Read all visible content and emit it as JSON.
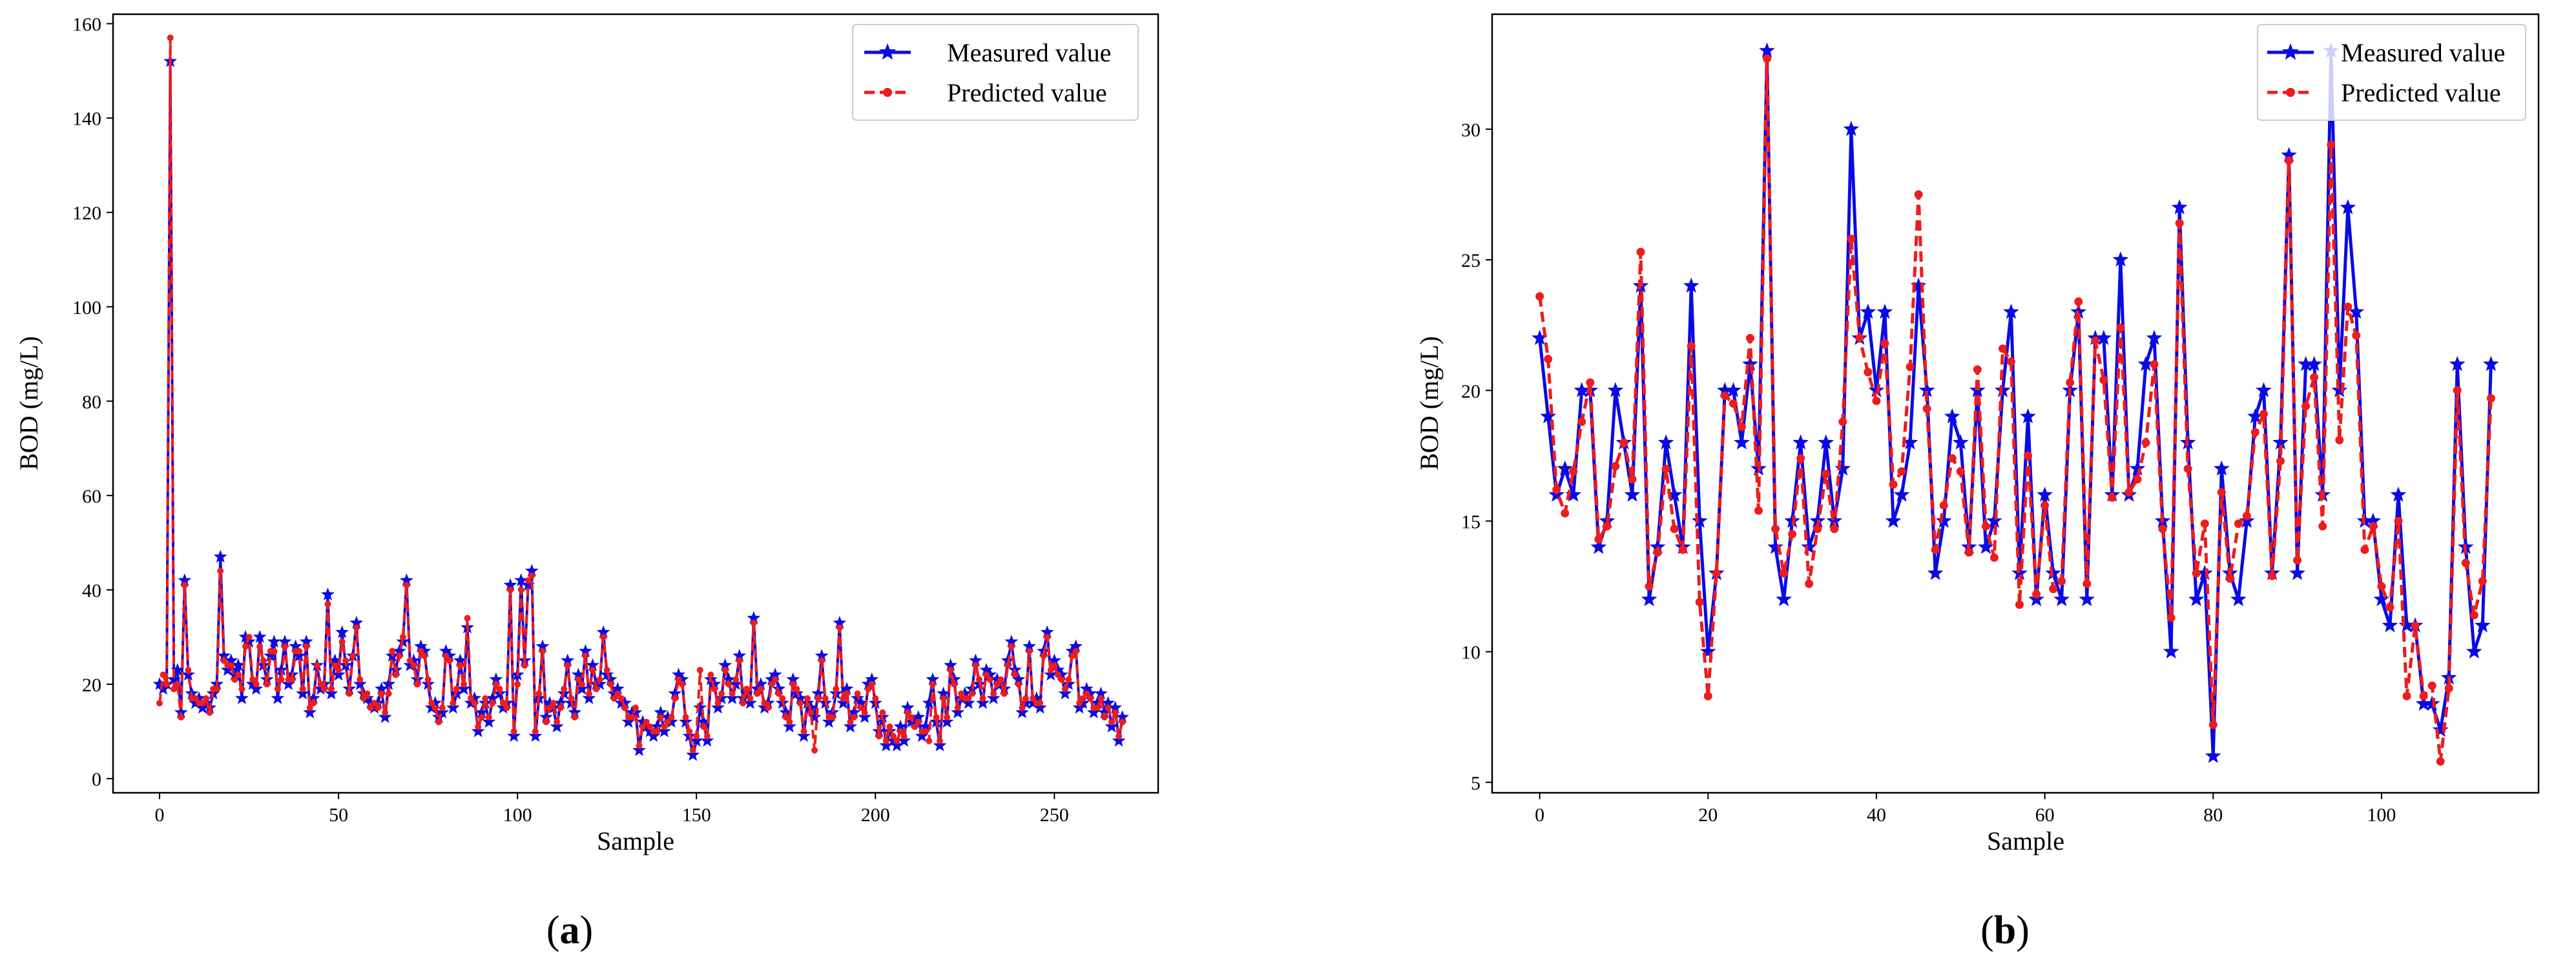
{
  "figure": {
    "panels": [
      {
        "id": "a",
        "label_open": "(",
        "label_letter": "a",
        "label_close": ")"
      },
      {
        "id": "b",
        "label_open": "(",
        "label_letter": "b",
        "label_close": ")"
      }
    ]
  },
  "chart_data": [
    {
      "type": "line",
      "panel": "a",
      "title": "",
      "xlabel": "Sample",
      "ylabel": "BOD (mg/L)",
      "xlim": [
        -13,
        279
      ],
      "ylim": [
        -3,
        162
      ],
      "xticks": [
        0,
        50,
        100,
        150,
        200,
        250
      ],
      "yticks": [
        0,
        20,
        40,
        60,
        80,
        100,
        120,
        140,
        160
      ],
      "legend_position": "top-right",
      "colors": {
        "measured": "#0a0ae6",
        "predicted": "#ee1c1c"
      },
      "series": [
        {
          "name": "Measured value",
          "style": "solid line with star markers",
          "x_start": 0,
          "values": [
            20,
            19,
            20,
            152,
            21,
            23,
            14,
            42,
            22,
            18,
            16,
            17,
            15,
            16,
            15,
            18,
            20,
            47,
            26,
            23,
            25,
            22,
            24,
            17,
            30,
            29,
            20,
            19,
            30,
            24,
            21,
            26,
            29,
            17,
            23,
            29,
            20,
            22,
            28,
            26,
            18,
            29,
            14,
            17,
            24,
            19,
            20,
            39,
            18,
            25,
            22,
            31,
            24,
            19,
            26,
            33,
            20,
            18,
            17,
            16,
            15,
            16,
            19,
            13,
            20,
            26,
            23,
            27,
            29,
            42,
            24,
            25,
            21,
            28,
            27,
            20,
            15,
            16,
            13,
            14,
            27,
            26,
            15,
            18,
            25,
            19,
            32,
            16,
            17,
            10,
            14,
            16,
            12,
            17,
            21,
            18,
            15,
            16,
            41,
            9,
            22,
            42,
            25,
            41,
            44,
            9,
            17,
            28,
            13,
            16,
            15,
            11,
            16,
            18,
            25,
            16,
            14,
            22,
            19,
            27,
            17,
            24,
            20,
            20,
            31,
            22,
            21,
            18,
            19,
            16,
            16,
            12,
            14,
            14,
            6,
            12,
            11,
            10,
            9,
            11,
            14,
            10,
            13,
            12,
            18,
            22,
            21,
            12,
            9,
            5,
            8,
            15,
            12,
            8,
            21,
            20,
            15,
            17,
            24,
            21,
            17,
            20,
            26,
            17,
            18,
            16,
            34,
            19,
            20,
            15,
            16,
            21,
            22,
            19,
            16,
            14,
            11,
            21,
            18,
            17,
            9,
            16,
            15,
            13,
            18,
            26,
            16,
            12,
            14,
            18,
            33,
            16,
            19,
            11,
            14,
            17,
            16,
            13,
            20,
            21,
            16,
            10,
            13,
            7,
            10,
            8,
            7,
            11,
            8,
            15,
            12,
            12,
            13,
            9,
            11,
            16,
            21,
            12,
            7,
            18,
            12,
            24,
            21,
            14,
            17,
            18,
            16,
            19,
            25,
            20,
            16,
            23,
            22,
            17,
            21,
            20,
            19,
            25,
            29,
            23,
            21,
            14,
            16,
            28,
            16,
            17,
            15,
            27,
            31,
            22,
            25,
            23,
            22,
            18,
            20,
            27,
            28,
            15,
            16,
            19,
            18,
            14,
            16,
            18,
            14,
            16,
            11,
            15,
            8,
            13
          ]
        },
        {
          "name": "Predicted value",
          "style": "dashed line with dot markers",
          "x_start": 0,
          "values": [
            16,
            22,
            20,
            157,
            19,
            20,
            13,
            41,
            23,
            17,
            17,
            16,
            16,
            17,
            14,
            19,
            19,
            44,
            25,
            24,
            24,
            21,
            22,
            19,
            28,
            30,
            21,
            20,
            28,
            25,
            20,
            27,
            27,
            19,
            21,
            28,
            21,
            21,
            27,
            27,
            19,
            28,
            15,
            16,
            24,
            20,
            19,
            37,
            19,
            24,
            23,
            29,
            25,
            18,
            26,
            32,
            21,
            17,
            18,
            15,
            16,
            15,
            18,
            14,
            18,
            27,
            22,
            26,
            30,
            41,
            25,
            24,
            20,
            27,
            26,
            21,
            16,
            15,
            12,
            15,
            26,
            25,
            16,
            19,
            24,
            20,
            34,
            17,
            16,
            11,
            13,
            17,
            13,
            16,
            20,
            19,
            16,
            15,
            40,
            10,
            20,
            40,
            24,
            42,
            43,
            10,
            18,
            27,
            12,
            15,
            16,
            12,
            15,
            19,
            24,
            17,
            13,
            21,
            20,
            26,
            18,
            23,
            19,
            21,
            30,
            23,
            20,
            17,
            18,
            17,
            15,
            13,
            13,
            15,
            7,
            11,
            12,
            11,
            10,
            10,
            13,
            11,
            12,
            13,
            17,
            21,
            20,
            13,
            10,
            6,
            9,
            23,
            11,
            9,
            22,
            19,
            16,
            18,
            23,
            20,
            18,
            21,
            25,
            16,
            19,
            17,
            33,
            18,
            19,
            16,
            15,
            20,
            21,
            18,
            17,
            13,
            12,
            20,
            19,
            16,
            10,
            17,
            14,
            6,
            17,
            25,
            17,
            13,
            13,
            19,
            32,
            17,
            18,
            12,
            13,
            18,
            15,
            14,
            19,
            20,
            17,
            9,
            14,
            8,
            11,
            9,
            8,
            10,
            9,
            14,
            13,
            11,
            12,
            10,
            10,
            8,
            20,
            13,
            8,
            17,
            13,
            23,
            20,
            15,
            18,
            17,
            17,
            18,
            24,
            21,
            17,
            22,
            21,
            18,
            20,
            21,
            18,
            24,
            28,
            22,
            20,
            15,
            17,
            27,
            17,
            16,
            16,
            26,
            30,
            23,
            24,
            22,
            21,
            19,
            21,
            26,
            27,
            16,
            17,
            18,
            17,
            15,
            15,
            17,
            13,
            15,
            12,
            14,
            9,
            12
          ]
        }
      ]
    },
    {
      "type": "line",
      "panel": "b",
      "title": "",
      "xlabel": "Sample",
      "ylabel": "BOD (mg/L)",
      "xlim": [
        -5.65,
        118.65
      ],
      "ylim": [
        4.6,
        34.4
      ],
      "xticks": [
        0,
        20,
        40,
        60,
        80,
        100
      ],
      "yticks": [
        5,
        10,
        15,
        20,
        25,
        30
      ],
      "legend_position": "top-right",
      "colors": {
        "measured": "#0a0ae6",
        "predicted": "#ee1c1c"
      },
      "series": [
        {
          "name": "Measured value",
          "style": "solid line with star markers",
          "x_start": 0,
          "values": [
            22,
            19,
            16,
            17,
            16,
            20,
            20,
            14,
            15,
            20,
            18,
            16,
            24,
            12,
            14,
            18,
            16,
            14,
            24,
            15,
            10,
            13,
            20,
            20,
            18,
            21,
            17,
            33,
            14,
            12,
            15,
            18,
            14,
            15,
            18,
            15,
            17,
            30,
            22,
            23,
            20,
            23,
            15,
            16,
            18,
            24,
            20,
            13,
            15,
            19,
            18,
            14,
            20,
            14,
            15,
            20,
            23,
            13,
            19,
            12,
            16,
            13,
            12,
            20,
            23,
            12,
            22,
            22,
            16,
            25,
            16,
            17,
            21,
            22,
            15,
            10,
            27,
            18,
            12,
            13,
            6,
            17,
            13,
            12,
            15,
            19,
            20,
            13,
            18,
            29,
            13,
            21,
            21,
            16,
            33,
            20,
            27,
            23,
            15,
            15,
            12,
            11,
            16,
            11,
            11,
            8,
            8,
            7,
            9,
            21,
            14,
            10,
            11,
            21
          ]
        },
        {
          "name": "Predicted value",
          "style": "dashed line with dot markers",
          "x_start": 0,
          "values": [
            23.6,
            21.2,
            16.2,
            15.3,
            16.9,
            18.8,
            20.3,
            14.3,
            14.8,
            17.1,
            18.0,
            16.6,
            25.3,
            12.5,
            13.8,
            17.0,
            14.7,
            13.9,
            21.7,
            11.9,
            8.3,
            13.0,
            19.8,
            19.5,
            18.6,
            22.0,
            15.4,
            32.7,
            14.7,
            13.0,
            14.5,
            17.4,
            12.6,
            14.7,
            16.8,
            14.7,
            18.8,
            25.8,
            22.0,
            20.7,
            19.6,
            21.8,
            16.4,
            16.9,
            20.9,
            27.5,
            19.3,
            13.9,
            15.6,
            17.4,
            16.9,
            13.8,
            20.8,
            14.8,
            13.6,
            21.6,
            21.1,
            11.8,
            17.5,
            12.2,
            15.6,
            12.4,
            12.7,
            20.3,
            23.4,
            12.6,
            21.9,
            20.4,
            15.9,
            22.4,
            16.1,
            16.6,
            18.0,
            21.0,
            14.7,
            11.3,
            26.4,
            17.0,
            13.0,
            14.9,
            7.2,
            16.1,
            12.8,
            14.9,
            15.2,
            18.4,
            19.1,
            12.9,
            17.3,
            28.8,
            13.5,
            19.4,
            20.5,
            14.8,
            29.4,
            18.1,
            23.2,
            22.1,
            13.9,
            14.8,
            12.5,
            11.7,
            15.0,
            8.3,
            11.0,
            8.3,
            8.7,
            5.8,
            8.6,
            20.0,
            13.4,
            11.4,
            12.7,
            19.7
          ]
        }
      ]
    }
  ]
}
